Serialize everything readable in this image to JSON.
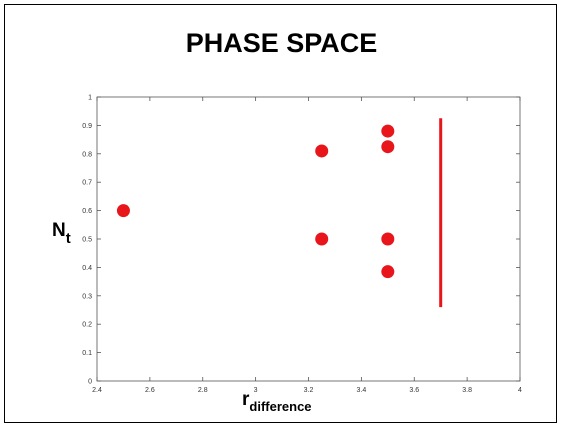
{
  "chart_data": {
    "type": "scatter",
    "title": "PHASE SPACE",
    "ylabel_main": "N",
    "ylabel_sub": "t",
    "xlabel_main": "r",
    "xlabel_sub": "difference",
    "xlim": [
      2.4,
      4
    ],
    "ylim": [
      0,
      1
    ],
    "xticks": [
      "2.4",
      "2.6",
      "2.8",
      "3",
      "3.2",
      "3.4",
      "3.6",
      "3.8",
      "4"
    ],
    "yticks": [
      "0",
      "0.1",
      "0.2",
      "0.3",
      "0.4",
      "0.5",
      "0.6",
      "0.7",
      "0.8",
      "0.9",
      "1"
    ],
    "points": [
      {
        "x": 2.5,
        "y": 0.6
      },
      {
        "x": 3.25,
        "y": 0.81
      },
      {
        "x": 3.25,
        "y": 0.5
      },
      {
        "x": 3.5,
        "y": 0.88
      },
      {
        "x": 3.5,
        "y": 0.825
      },
      {
        "x": 3.5,
        "y": 0.5
      },
      {
        "x": 3.5,
        "y": 0.385
      }
    ],
    "vertical_segment": {
      "x": 3.7,
      "y_start": 0.26,
      "y_end": 0.925
    },
    "grid": false,
    "marker_color": "#e8151b"
  }
}
